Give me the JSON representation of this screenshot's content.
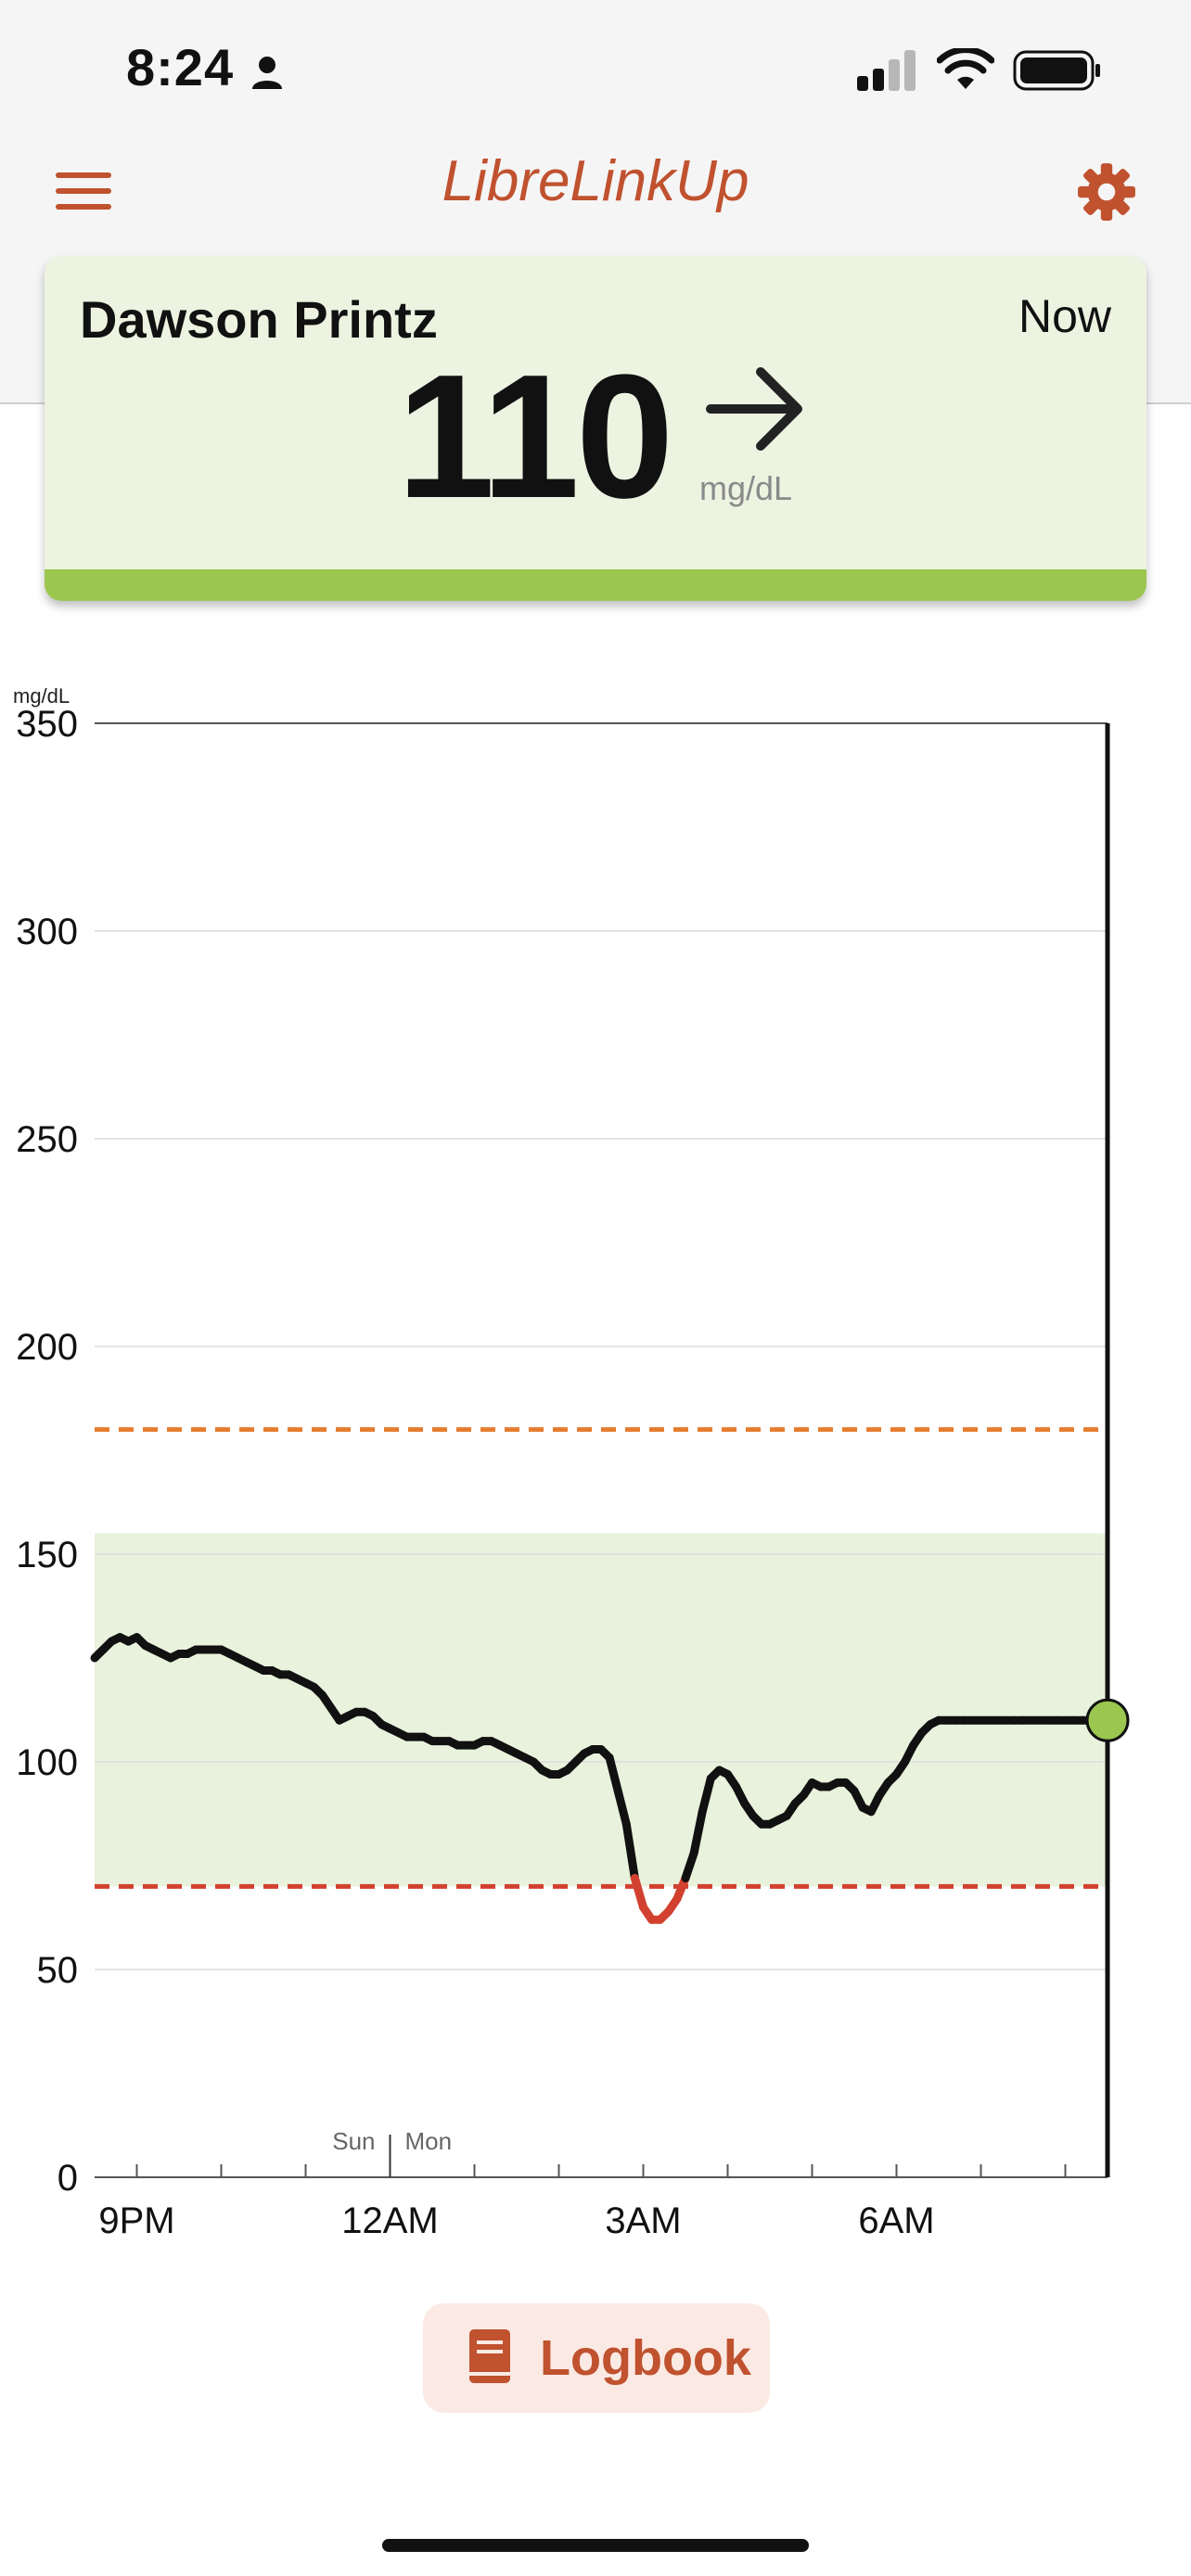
{
  "status_bar": {
    "time": "8:24",
    "icons": [
      "person-icon",
      "signal-icon",
      "wifi-icon",
      "battery-icon"
    ]
  },
  "header": {
    "title": "LibreLinkUp",
    "menu_icon": "menu-icon",
    "settings_icon": "gear-icon"
  },
  "reading_card": {
    "patient_name": "Dawson Printz",
    "time_label": "Now",
    "value": "110",
    "unit": "mg/dL",
    "trend": "steady-right-arrow",
    "status_color": "#9bc64f"
  },
  "chart_data": {
    "type": "line",
    "ylabel": "mg/dL",
    "ylim": [
      0,
      350
    ],
    "y_ticks": [
      "0",
      "50",
      "100",
      "150",
      "200",
      "250",
      "300",
      "350"
    ],
    "x_tick_labels": [
      {
        "label": "9PM",
        "x": 21.0
      },
      {
        "label": "12AM",
        "x": 24.0
      },
      {
        "label": "3AM",
        "x": 27.0
      },
      {
        "label": "6AM",
        "x": 30.0
      }
    ],
    "day_labels": [
      "Sun",
      "Mon"
    ],
    "day_boundary_x": 24.0,
    "xlim": [
      20.5,
      32.5
    ],
    "target_range": [
      70,
      155
    ],
    "high_threshold": 180,
    "low_threshold": 70,
    "current_point": {
      "x": 32.5,
      "y": 110
    },
    "series": [
      {
        "x": [
          20.5,
          20.6,
          20.7,
          20.8,
          20.9,
          21.0,
          21.1,
          21.2,
          21.3,
          21.4,
          21.5,
          21.6,
          21.7,
          21.8,
          21.9,
          22.0,
          22.1,
          22.2,
          22.3,
          22.4,
          22.5,
          22.6,
          22.7,
          22.8,
          22.9,
          23.0,
          23.1,
          23.2,
          23.3,
          23.4,
          23.5,
          23.6,
          23.7,
          23.8,
          23.9,
          24.0,
          24.1,
          24.2,
          24.3,
          24.4,
          24.5,
          24.6,
          24.7,
          24.8,
          24.9,
          25.0,
          25.1,
          25.2,
          25.3,
          25.4,
          25.5,
          25.6,
          25.7,
          25.8,
          25.9,
          26.0,
          26.1,
          26.2,
          26.3,
          26.4,
          26.5,
          26.6,
          26.7,
          26.8,
          26.9,
          27.0,
          27.1,
          27.2,
          27.3,
          27.4,
          27.5,
          27.6,
          27.7,
          27.8,
          27.9,
          28.0,
          28.1,
          28.2,
          28.3,
          28.4,
          28.5,
          28.6,
          28.7,
          28.8,
          28.9,
          29.0,
          29.1,
          29.2,
          29.3,
          29.4,
          29.5,
          29.6,
          29.7,
          29.8,
          29.9,
          30.0,
          30.1,
          30.2,
          30.3,
          30.4,
          30.5,
          30.6,
          30.7,
          30.8,
          30.9,
          31.0,
          31.1,
          31.2,
          31.3,
          31.4,
          31.5,
          31.6,
          31.7,
          31.8,
          31.9,
          32.0,
          32.1,
          32.2,
          32.3,
          32.4,
          32.5
        ],
        "values": [
          125,
          127,
          129,
          130,
          129,
          130,
          128,
          127,
          126,
          125,
          126,
          126,
          127,
          127,
          127,
          127,
          126,
          125,
          124,
          123,
          122,
          122,
          121,
          121,
          120,
          119,
          118,
          116,
          113,
          110,
          111,
          112,
          112,
          111,
          109,
          108,
          107,
          106,
          106,
          106,
          105,
          105,
          105,
          104,
          104,
          104,
          105,
          105,
          104,
          103,
          102,
          101,
          100,
          98,
          97,
          97,
          98,
          100,
          102,
          103,
          103,
          101,
          93,
          85,
          72,
          65,
          62,
          62,
          64,
          67,
          72,
          78,
          88,
          96,
          98,
          97,
          94,
          90,
          87,
          85,
          85,
          86,
          87,
          90,
          92,
          95,
          94,
          94,
          95,
          95,
          93,
          89,
          88,
          92,
          95,
          97,
          100,
          104,
          107,
          109,
          110,
          110,
          110,
          110,
          110,
          110,
          110,
          110,
          110,
          110,
          110,
          110,
          110,
          110,
          110,
          110,
          110,
          110,
          110,
          110,
          110
        ]
      }
    ]
  },
  "logbook": {
    "label": "Logbook",
    "icon": "book-icon"
  }
}
